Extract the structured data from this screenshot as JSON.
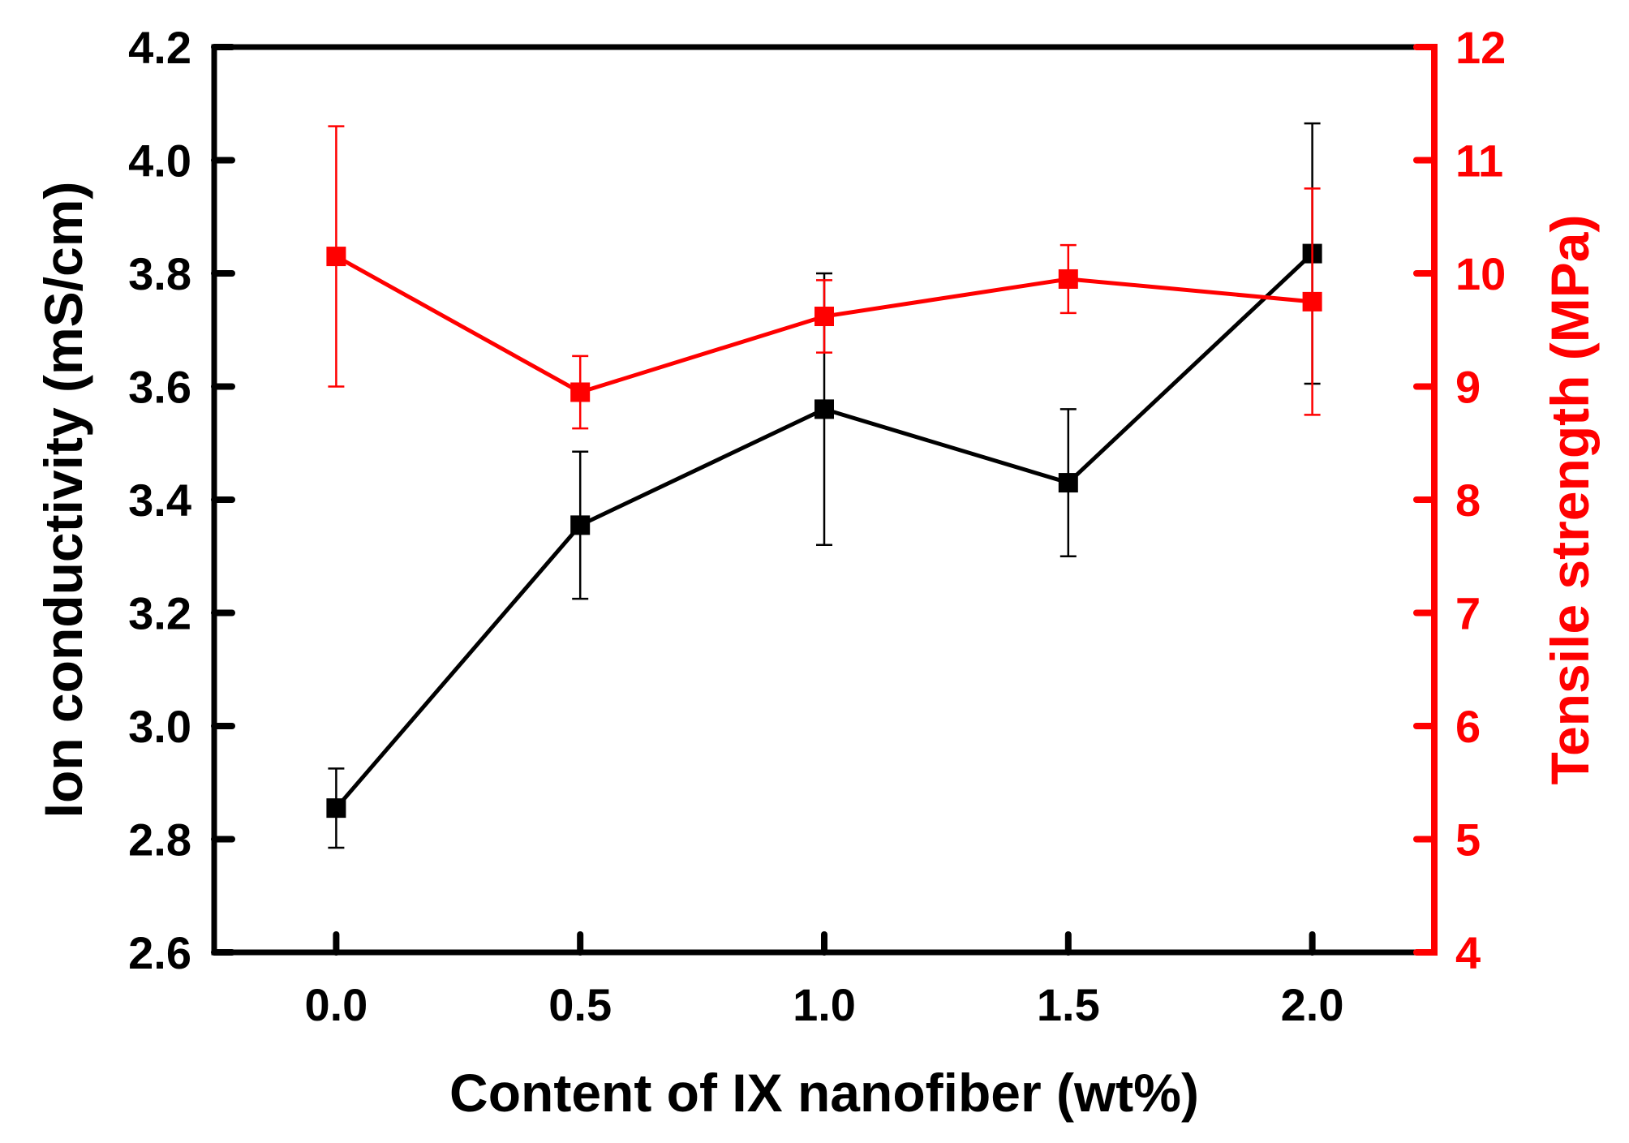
{
  "chart_data": {
    "type": "line",
    "title": "",
    "xlabel": "Content of IX nanofiber (wt%)",
    "ylabel_left": "Ion conductivity (mS/cm)",
    "ylabel_right": "Tensile strength (MPa)",
    "x": [
      0.0,
      0.5,
      1.0,
      1.5,
      2.0
    ],
    "x_tick_labels": [
      "0.0",
      "0.5",
      "1.0",
      "1.5",
      "2.0"
    ],
    "xlim": [
      -0.25,
      2.25
    ],
    "ylim_left": [
      2.6,
      4.2
    ],
    "y_left_tick_values": [
      2.6,
      2.8,
      3.0,
      3.2,
      3.4,
      3.6,
      3.8,
      4.0,
      4.2
    ],
    "y_left_tick_labels": [
      "2.6",
      "2.8",
      "3.0",
      "3.2",
      "3.4",
      "3.6",
      "3.8",
      "4.0",
      "4.2"
    ],
    "ylim_right": [
      4,
      12
    ],
    "y_right_tick_values": [
      4,
      5,
      6,
      7,
      8,
      9,
      10,
      11,
      12
    ],
    "y_right_tick_labels": [
      "4",
      "5",
      "6",
      "7",
      "8",
      "9",
      "10",
      "11",
      "12"
    ],
    "grid": false,
    "series": [
      {
        "name": "Ion conductivity",
        "axis": "left",
        "color": "#000000",
        "marker": "square",
        "values": [
          2.855,
          3.355,
          3.56,
          3.43,
          3.835
        ],
        "error": [
          0.07,
          0.13,
          0.24,
          0.13,
          0.23
        ]
      },
      {
        "name": "Tensile strength",
        "axis": "right",
        "color": "#ff0000",
        "marker": "square",
        "values": [
          10.15,
          8.95,
          9.62,
          9.95,
          9.75
        ],
        "error": [
          1.15,
          0.32,
          0.32,
          0.3,
          1.0
        ]
      }
    ]
  }
}
